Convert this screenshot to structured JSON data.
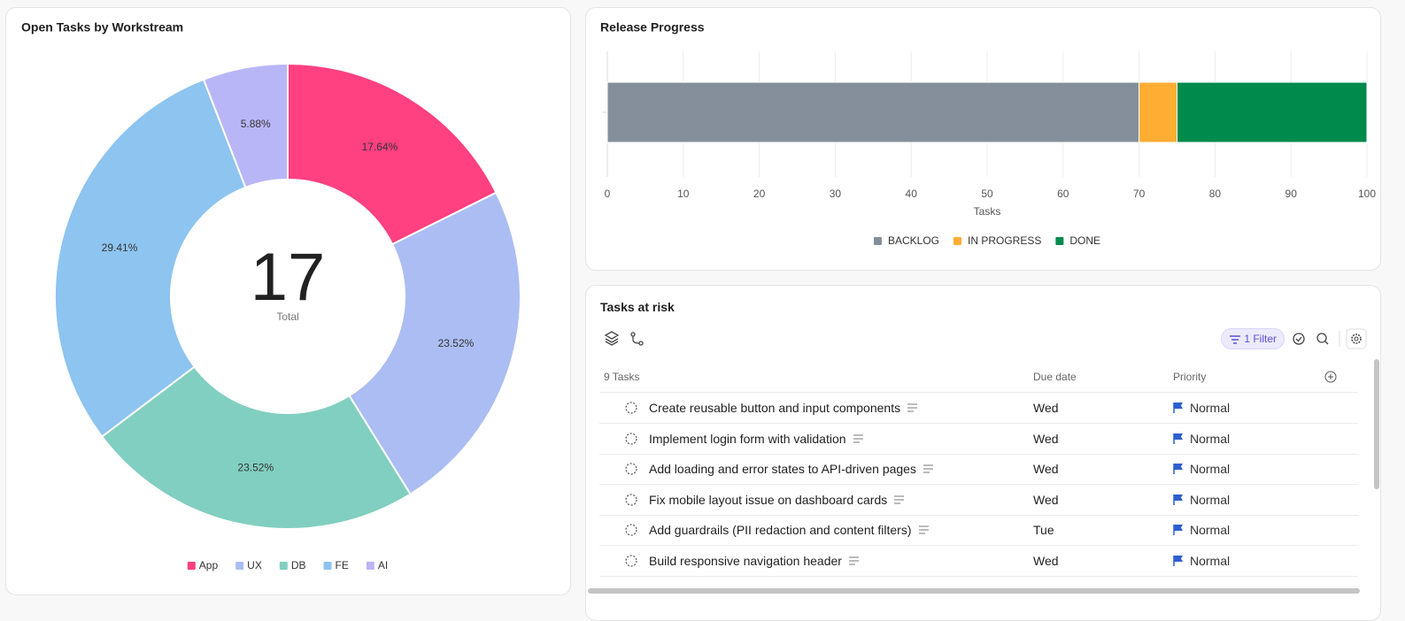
{
  "chart_data": [
    {
      "type": "pie",
      "title": "Open Tasks by Workstream",
      "categories": [
        "App",
        "UX",
        "DB",
        "FE",
        "AI"
      ],
      "values": [
        17.64,
        23.52,
        23.52,
        29.41,
        5.88
      ],
      "value_labels": [
        "17.64%",
        "23.52%",
        "23.52%",
        "29.41%",
        "5.88%"
      ],
      "colors": [
        "#ff4081",
        "#abbdf2",
        "#81cfc0",
        "#8dc4f0",
        "#b9b6f8"
      ],
      "total": 17,
      "total_label": "Total",
      "donut": true,
      "legend": "bottom"
    },
    {
      "type": "stacked-bar",
      "orientation": "horizontal",
      "title": "Release Progress",
      "series": [
        {
          "name": "BACKLOG",
          "color": "#858f9b",
          "values": [
            70
          ]
        },
        {
          "name": "IN PROGRESS",
          "color": "#ffad33",
          "values": [
            5
          ]
        },
        {
          "name": "DONE",
          "color": "#008a4b",
          "values": [
            25
          ]
        }
      ],
      "xlim": [
        0,
        100
      ],
      "xticks": [
        0,
        10,
        20,
        30,
        40,
        50,
        60,
        70,
        80,
        90,
        100
      ],
      "xlabel": "Tasks",
      "grid": true,
      "legend": "bottom"
    }
  ],
  "tasks_panel": {
    "title": "Tasks at risk",
    "filter_button": "1 Filter",
    "columns": [
      "9 Tasks",
      "Due date",
      "Priority"
    ],
    "rows": [
      {
        "title": "Create reusable button and input components",
        "due": "Wed",
        "priority": "Normal"
      },
      {
        "title": "Implement login form with validation",
        "due": "Wed",
        "priority": "Normal"
      },
      {
        "title": "Add loading and error states to API-driven pages",
        "due": "Wed",
        "priority": "Normal"
      },
      {
        "title": "Fix mobile layout issue on dashboard cards",
        "due": "Wed",
        "priority": "Normal"
      },
      {
        "title": "Add guardrails (PII redaction and content filters)",
        "due": "Tue",
        "priority": "Normal"
      },
      {
        "title": "Build responsive navigation header",
        "due": "Wed",
        "priority": "Normal"
      }
    ]
  }
}
